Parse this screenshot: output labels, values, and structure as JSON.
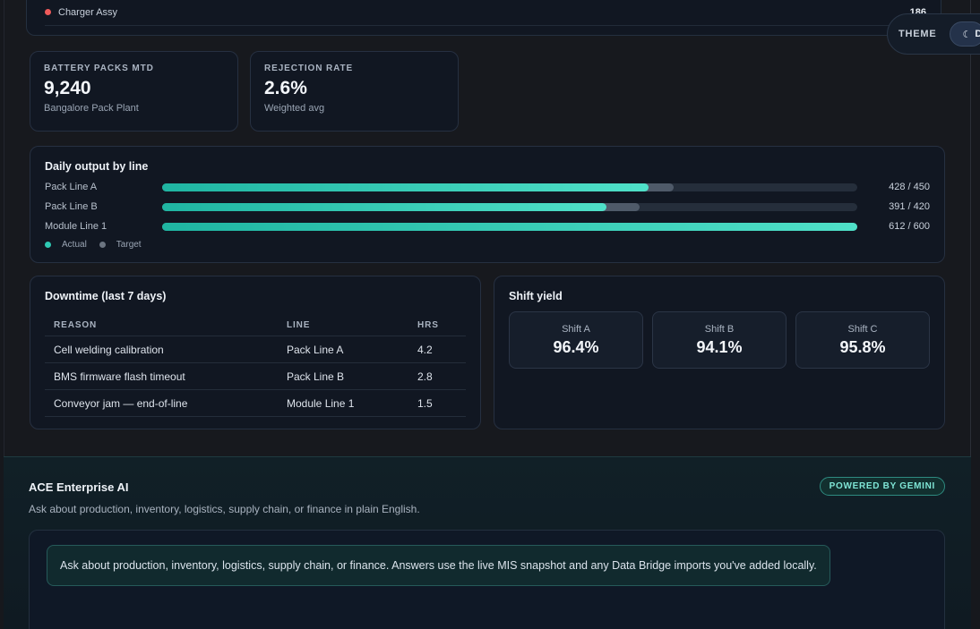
{
  "top_list": {
    "label": "Charger Assy",
    "value": "186"
  },
  "theme": {
    "label": "THEME",
    "button_text": "D"
  },
  "kpis": [
    {
      "title": "BATTERY PACKS MTD",
      "value": "9,240",
      "sub": "Bangalore Pack Plant"
    },
    {
      "title": "REJECTION RATE",
      "value": "2.6%",
      "sub": "Weighted avg"
    }
  ],
  "output": {
    "title": "Daily output by line",
    "lines": [
      {
        "name": "Pack Line A",
        "actual": 428,
        "target": 450,
        "label": "428 / 450"
      },
      {
        "name": "Pack Line B",
        "actual": 391,
        "target": 420,
        "label": "391 / 420"
      },
      {
        "name": "Module Line 1",
        "actual": 612,
        "target": 600,
        "label": "612 / 600"
      }
    ],
    "legend": {
      "actual": "Actual",
      "target": "Target"
    },
    "colors": {
      "actual": "#2ec9b3",
      "target": "#4f5a69"
    }
  },
  "downtime": {
    "title": "Downtime (last 7 days)",
    "headers": {
      "reason": "REASON",
      "line": "LINE",
      "hrs": "HRS"
    },
    "rows": [
      {
        "reason": "Cell welding calibration",
        "line": "Pack Line A",
        "hrs": "4.2"
      },
      {
        "reason": "BMS firmware flash timeout",
        "line": "Pack Line B",
        "hrs": "2.8"
      },
      {
        "reason": "Conveyor jam — end-of-line",
        "line": "Module Line 1",
        "hrs": "1.5"
      }
    ]
  },
  "shift_yield": {
    "title": "Shift yield",
    "shifts": [
      {
        "name": "Shift A",
        "value": "96.4%"
      },
      {
        "name": "Shift B",
        "value": "94.1%"
      },
      {
        "name": "Shift C",
        "value": "95.8%"
      }
    ]
  },
  "ai": {
    "title": "ACE Enterprise AI",
    "subtitle": "Ask about production, inventory, logistics, supply chain, or finance in plain English.",
    "badge": "POWERED BY GEMINI",
    "message": "Ask about production, inventory, logistics, supply chain, or finance. Answers use the live MIS snapshot and any Data Bridge imports you've added locally."
  }
}
